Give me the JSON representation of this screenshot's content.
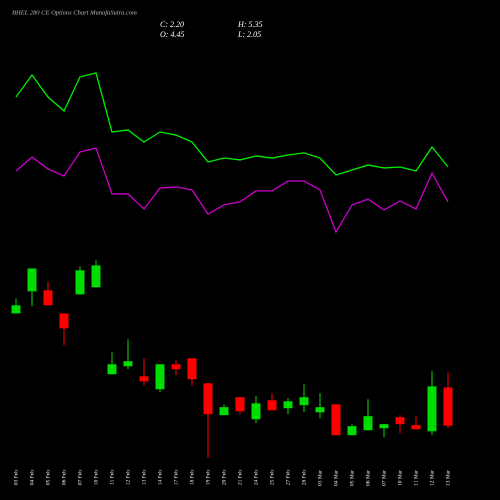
{
  "chart_data": [
    {
      "type": "line",
      "title": "BHEL 280 CE Options Chart MunafaSutra.com",
      "ylim": [
        0,
        100
      ],
      "series": [
        {
          "color": "#00ee00",
          "values": [
            80.5,
            92.1,
            80.5,
            73.2,
            91.1,
            93.2,
            62.1,
            63.2,
            56.8,
            62.1,
            60.5,
            56.8,
            46.3,
            48.4,
            47.4,
            49.5,
            48.4,
            50.0,
            51.1,
            48.4,
            39.5,
            42.1,
            44.7,
            43.2,
            43.7,
            41.6,
            54.2,
            43.7
          ]
        },
        {
          "color": "#cc00cc",
          "values": [
            41.6,
            48.9,
            42.6,
            38.9,
            51.6,
            53.7,
            29.5,
            29.5,
            21.6,
            32.6,
            33.2,
            31.6,
            18.9,
            23.7,
            25.3,
            31.1,
            31.1,
            36.3,
            36.3,
            31.6,
            9.5,
            23.7,
            26.8,
            21.1,
            25.8,
            21.6,
            40.5,
            25.3
          ]
        }
      ]
    },
    {
      "type": "candlestick",
      "ohlc_labels": [
        "C: 2.20",
        "H: 5.35",
        "O: 4.45",
        "L: 2.05"
      ],
      "x": [
        "03 Feb",
        "04 Feb",
        "05 Feb",
        "06 Feb",
        "07 Feb",
        "10 Feb",
        "11 Feb",
        "12 Feb",
        "13 Feb",
        "14 Feb",
        "17 Feb",
        "18 Feb",
        "19 Feb",
        "20 Feb",
        "21 Feb",
        "24 Feb",
        "25 Feb",
        "27 Feb",
        "28 Feb",
        "03 Mar",
        "04 Mar",
        "05 Mar",
        "06 Mar",
        "07 Mar",
        "10 Mar",
        "11 Mar",
        "12 Mar",
        "13 Mar"
      ],
      "open": [
        8.82,
        10.12,
        10.18,
        8.82,
        9.94,
        10.36,
        5.23,
        5.7,
        5.11,
        4.35,
        5.82,
        6.17,
        4.7,
        2.82,
        3.88,
        2.58,
        3.7,
        3.23,
        3.41,
        2.99,
        3.46,
        1.64,
        1.93,
        2.05,
        2.7,
        2.23,
        1.87,
        4.45
      ],
      "high": [
        9.71,
        11.47,
        10.71,
        8.82,
        11.59,
        11.95,
        6.53,
        7.29,
        6.17,
        5.82,
        6.06,
        6.17,
        4.7,
        3.46,
        3.88,
        3.94,
        4.11,
        3.82,
        4.64,
        4.11,
        3.46,
        2.29,
        3.76,
        2.29,
        2.82,
        2.76,
        5.41,
        5.35
      ],
      "low": [
        8.82,
        9.24,
        9.3,
        6.94,
        9.94,
        10.36,
        5.23,
        5.53,
        4.58,
        4.17,
        5.17,
        4.58,
        0.28,
        2.82,
        2.88,
        2.35,
        3.11,
        2.88,
        2.99,
        2.64,
        1.64,
        1.64,
        1.93,
        1.52,
        1.76,
        1.99,
        1.64,
        2.05
      ],
      "close": [
        9.3,
        11.47,
        9.3,
        7.94,
        11.36,
        11.65,
        5.82,
        6.0,
        4.82,
        5.82,
        5.53,
        4.94,
        2.88,
        3.29,
        3.05,
        3.52,
        3.11,
        3.64,
        3.88,
        3.29,
        1.64,
        2.17,
        2.76,
        2.29,
        2.29,
        1.99,
        4.52,
        2.2
      ],
      "up_color": "#00dd00",
      "down_color": "#ff0000",
      "ylim": [
        0,
        12.5
      ]
    }
  ]
}
